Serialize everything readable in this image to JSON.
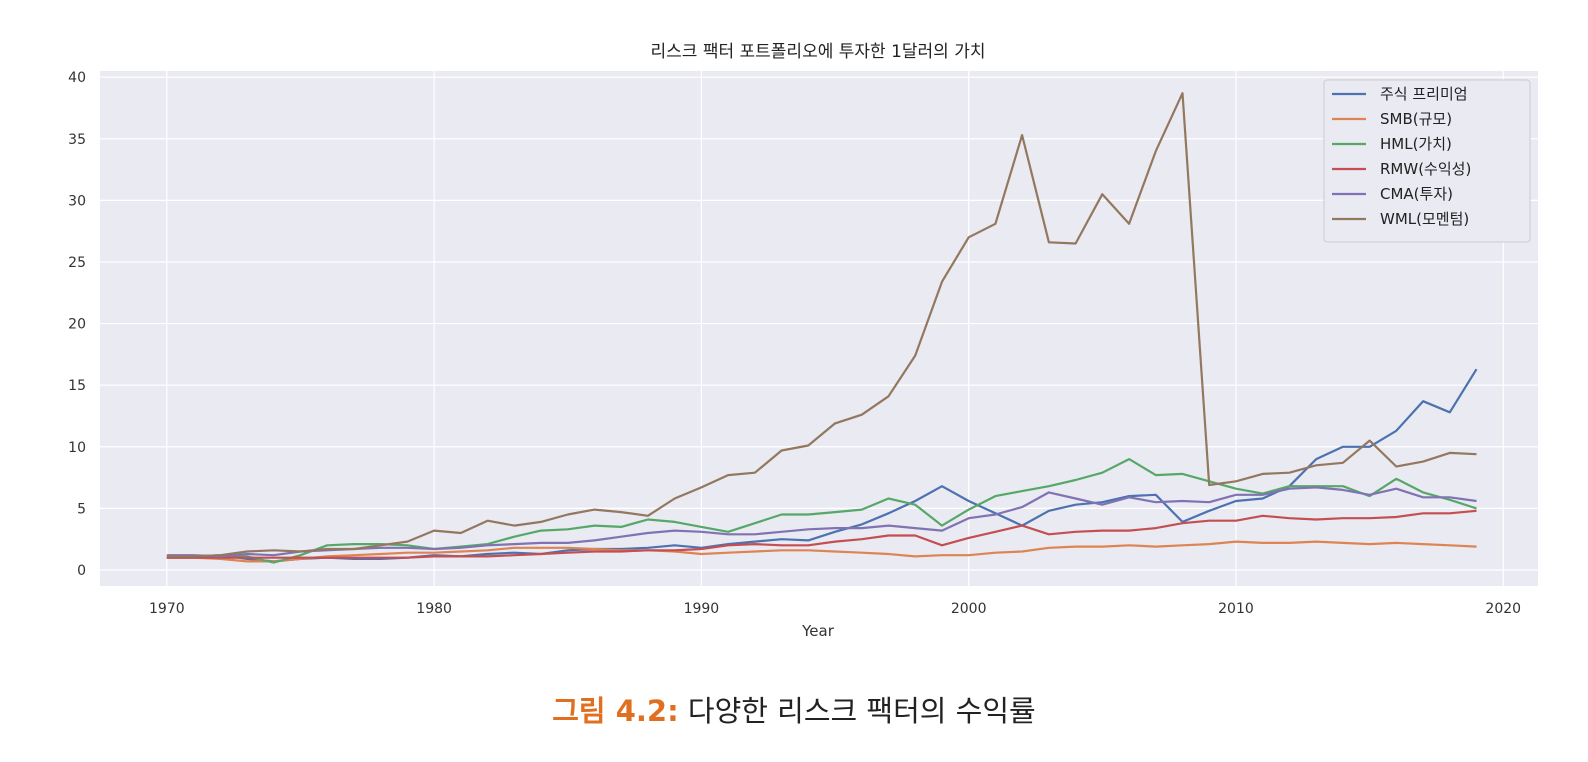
{
  "caption": {
    "label": "그림 4.2:",
    "text": "다양한 리스크 팩터의 수익률"
  },
  "chart_data": {
    "type": "line",
    "title": "리스크 팩터 포트폴리오에 투자한 1달러의 가치",
    "xlabel": "Year",
    "ylabel": "",
    "xlim": [
      1967.5,
      2021.3
    ],
    "ylim": [
      -1.3,
      40.5
    ],
    "xticks": [
      1970,
      1980,
      1990,
      2000,
      2010,
      2020
    ],
    "yticks": [
      0,
      5,
      10,
      15,
      20,
      25,
      30,
      35,
      40
    ],
    "grid": true,
    "legend_position": "top-right",
    "background": "#eaeaf2",
    "x": [
      1970,
      1971,
      1972,
      1973,
      1974,
      1975,
      1976,
      1977,
      1978,
      1979,
      1980,
      1981,
      1982,
      1983,
      1984,
      1985,
      1986,
      1987,
      1988,
      1989,
      1990,
      1991,
      1992,
      1993,
      1994,
      1995,
      1996,
      1997,
      1998,
      1999,
      2000,
      2001,
      2002,
      2003,
      2004,
      2005,
      2006,
      2007,
      2008,
      2009,
      2010,
      2011,
      2012,
      2013,
      2014,
      2015,
      2016,
      2017,
      2018,
      2019
    ],
    "series": [
      {
        "name": "주식 프리미엄",
        "color": "#4c72b0",
        "values": [
          1.0,
          1.1,
          1.2,
          0.9,
          0.7,
          0.9,
          1.0,
          0.9,
          0.9,
          1.0,
          1.2,
          1.1,
          1.3,
          1.4,
          1.3,
          1.6,
          1.7,
          1.7,
          1.8,
          2.0,
          1.8,
          2.1,
          2.3,
          2.5,
          2.4,
          3.1,
          3.7,
          4.6,
          5.6,
          6.8,
          5.6,
          4.6,
          3.6,
          4.8,
          5.3,
          5.5,
          6.0,
          6.1,
          3.9,
          4.8,
          5.6,
          5.8,
          6.8,
          9.0,
          10.0,
          10.0,
          11.3,
          13.7,
          12.8,
          16.3
        ]
      },
      {
        "name": "SMB(규모)",
        "color": "#dd8452",
        "values": [
          1.0,
          1.0,
          0.9,
          0.7,
          0.7,
          0.9,
          1.1,
          1.2,
          1.3,
          1.4,
          1.4,
          1.5,
          1.6,
          1.8,
          1.8,
          1.8,
          1.7,
          1.6,
          1.6,
          1.5,
          1.3,
          1.4,
          1.5,
          1.6,
          1.6,
          1.5,
          1.4,
          1.3,
          1.1,
          1.2,
          1.2,
          1.4,
          1.5,
          1.8,
          1.9,
          1.9,
          2.0,
          1.9,
          2.0,
          2.1,
          2.3,
          2.2,
          2.2,
          2.3,
          2.2,
          2.1,
          2.2,
          2.1,
          2.0,
          1.9
        ]
      },
      {
        "name": "HML(가치)",
        "color": "#55a868",
        "values": [
          1.0,
          1.0,
          1.1,
          1.1,
          0.6,
          1.2,
          2.0,
          2.1,
          2.1,
          2.0,
          1.7,
          1.9,
          2.1,
          2.7,
          3.2,
          3.3,
          3.6,
          3.5,
          4.1,
          3.9,
          3.5,
          3.1,
          3.8,
          4.5,
          4.5,
          4.7,
          4.9,
          5.8,
          5.3,
          3.6,
          4.9,
          6.0,
          6.4,
          6.8,
          7.3,
          7.9,
          9.0,
          7.7,
          7.8,
          7.2,
          6.6,
          6.2,
          6.8,
          6.8,
          6.8,
          6.0,
          7.4,
          6.3,
          5.7,
          5.0
        ]
      },
      {
        "name": "RMW(수익성)",
        "color": "#c44e52",
        "values": [
          1.0,
          1.0,
          1.0,
          1.0,
          1.0,
          1.0,
          1.0,
          1.0,
          1.0,
          1.0,
          1.1,
          1.1,
          1.1,
          1.2,
          1.3,
          1.4,
          1.5,
          1.5,
          1.6,
          1.6,
          1.7,
          2.0,
          2.1,
          2.0,
          2.0,
          2.3,
          2.5,
          2.8,
          2.8,
          2.0,
          2.6,
          3.1,
          3.6,
          2.9,
          3.1,
          3.2,
          3.2,
          3.4,
          3.8,
          4.0,
          4.0,
          4.4,
          4.2,
          4.1,
          4.2,
          4.2,
          4.3,
          4.6,
          4.6,
          4.8
        ]
      },
      {
        "name": "CMA(투자)",
        "color": "#8172b3",
        "values": [
          1.2,
          1.2,
          1.1,
          1.3,
          1.2,
          1.5,
          1.6,
          1.7,
          1.8,
          1.8,
          1.7,
          1.8,
          2.0,
          2.1,
          2.2,
          2.2,
          2.4,
          2.7,
          3.0,
          3.2,
          3.1,
          2.9,
          2.9,
          3.1,
          3.3,
          3.4,
          3.4,
          3.6,
          3.4,
          3.2,
          4.2,
          4.5,
          5.1,
          6.3,
          5.8,
          5.3,
          5.9,
          5.5,
          5.6,
          5.5,
          6.1,
          6.1,
          6.6,
          6.7,
          6.5,
          6.1,
          6.6,
          5.9,
          5.9,
          5.6
        ]
      },
      {
        "name": "WML(모멘텀)",
        "color": "#937860",
        "values": [
          1.1,
          1.1,
          1.2,
          1.5,
          1.6,
          1.5,
          1.7,
          1.7,
          2.0,
          2.3,
          3.2,
          3.0,
          4.0,
          3.6,
          3.9,
          4.5,
          4.9,
          4.7,
          4.4,
          5.8,
          6.7,
          7.7,
          7.9,
          9.7,
          10.1,
          11.9,
          12.6,
          14.1,
          17.4,
          23.4,
          27.0,
          28.1,
          35.3,
          26.6,
          26.5,
          30.5,
          28.1,
          34.0,
          38.7,
          6.9,
          7.2,
          7.8,
          7.9,
          8.5,
          8.7,
          10.5,
          8.4,
          8.8,
          9.5,
          9.4
        ]
      }
    ]
  }
}
